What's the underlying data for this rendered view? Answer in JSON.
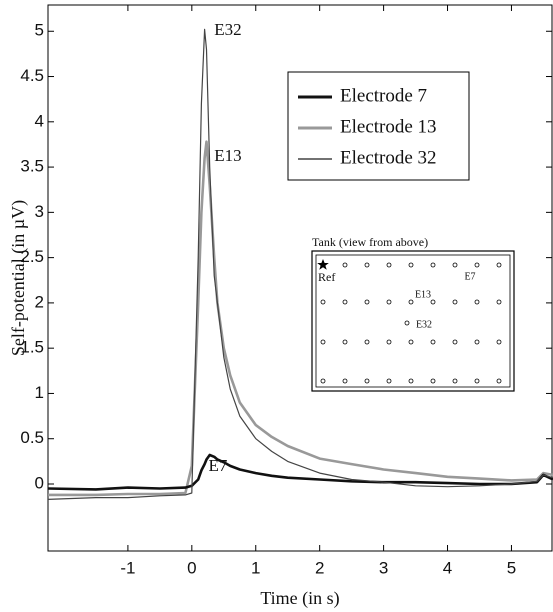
{
  "chart_data": {
    "type": "line",
    "x_label": "Time (in s)",
    "y_label": "Self-potential (in µV)",
    "x": [
      -2.25,
      -1.5,
      -1,
      -0.5,
      -0.1,
      0,
      0.1,
      0.15,
      0.2,
      0.23,
      0.28,
      0.35,
      0.4,
      0.5,
      0.6,
      0.75,
      1,
      1.25,
      1.5,
      2,
      2.5,
      3,
      3.5,
      4,
      4.5,
      5,
      5.4,
      5.5,
      5.65
    ],
    "series": [
      {
        "name": "Electrode 7",
        "color": "#111111",
        "values": [
          -0.05,
          -0.06,
          -0.04,
          -0.05,
          -0.04,
          -0.02,
          0.05,
          0.15,
          0.22,
          0.27,
          0.32,
          0.3,
          0.27,
          0.24,
          0.2,
          0.16,
          0.12,
          0.09,
          0.07,
          0.05,
          0.03,
          0.02,
          0.02,
          0.01,
          0.0,
          0.0,
          0.02,
          0.1,
          0.05
        ]
      },
      {
        "name": "Electrode 13",
        "color": "#999999",
        "values": [
          -0.12,
          -0.12,
          -0.11,
          -0.11,
          -0.1,
          0.2,
          2.0,
          3.0,
          3.6,
          3.78,
          3.3,
          2.5,
          2.0,
          1.5,
          1.2,
          0.9,
          0.65,
          0.52,
          0.42,
          0.28,
          0.22,
          0.16,
          0.12,
          0.08,
          0.06,
          0.04,
          0.05,
          0.12,
          0.1
        ]
      },
      {
        "name": "Electrode 32",
        "color": "#444444",
        "values": [
          -0.17,
          -0.15,
          -0.15,
          -0.13,
          -0.12,
          -0.1,
          2.5,
          4.2,
          5.02,
          4.8,
          3.5,
          2.3,
          2.0,
          1.4,
          1.05,
          0.75,
          0.5,
          0.36,
          0.25,
          0.12,
          0.05,
          0.02,
          -0.02,
          -0.03,
          -0.02,
          0.0,
          0.03,
          0.1,
          0.07
        ]
      }
    ],
    "annotations": [
      "E32",
      "E13",
      "E7"
    ],
    "xlim": [
      -2.25,
      5.65
    ],
    "ylim": [
      -0.74,
      5.29
    ],
    "xticks": [
      -1,
      0,
      1,
      2,
      3,
      4,
      5
    ],
    "yticks": [
      0,
      0.5,
      1,
      1.5,
      2,
      2.5,
      3,
      3.5,
      4,
      4.5,
      5
    ],
    "legend": "upper right",
    "inset": {
      "title": "Tank (view from above)",
      "labels": [
        "Ref",
        "E7",
        "E13",
        "E32"
      ]
    }
  }
}
